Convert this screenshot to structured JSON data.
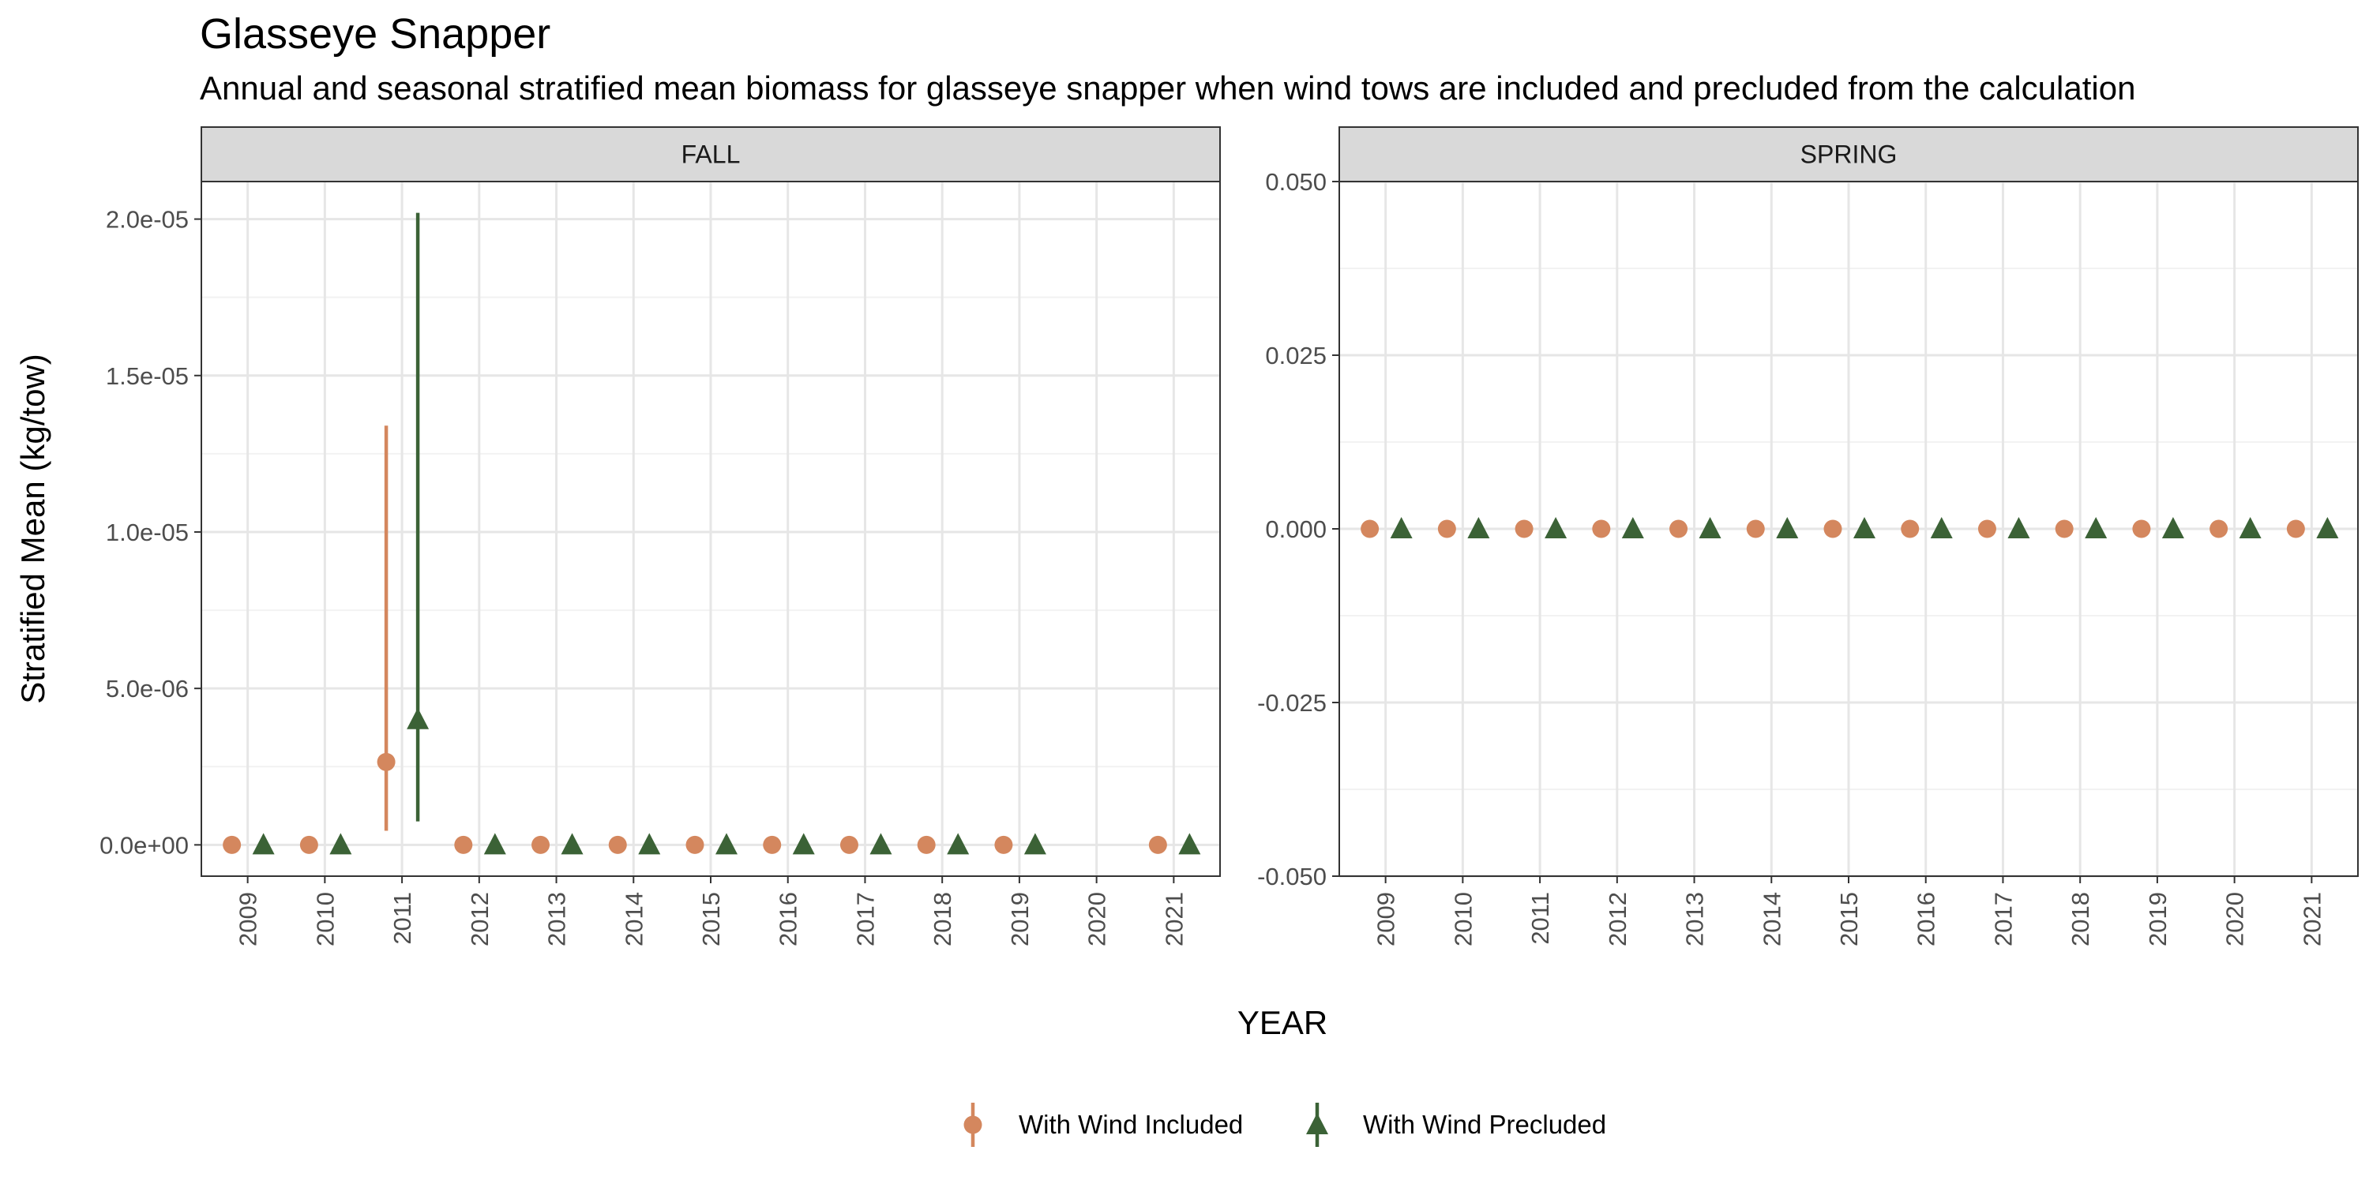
{
  "title": "Glasseye Snapper",
  "subtitle": "Annual and seasonal stratified mean biomass for glasseye snapper when wind tows are included and precluded from the calculation",
  "xlabel": "YEAR",
  "ylabel": "Stratified Mean (kg/tow)",
  "legend": {
    "position": "bottom",
    "items": [
      {
        "label": "With Wind Included",
        "shape": "circle",
        "color": "#D4875E"
      },
      {
        "label": "With Wind Precluded",
        "shape": "triangle",
        "color": "#3B6236"
      }
    ]
  },
  "chart_data": [
    {
      "type": "scatter",
      "panel": "FALL",
      "x_ticks": [
        "2009",
        "2010",
        "2011",
        "2012",
        "2013",
        "2014",
        "2015",
        "2016",
        "2017",
        "2018",
        "2019",
        "2020",
        "2021"
      ],
      "y_ticks": [
        "0.0e+00",
        "5.0e-06",
        "1.0e-05",
        "1.5e-05",
        "2.0e-05"
      ],
      "y_tick_values": [
        0,
        5e-06,
        1e-05,
        1.5e-05,
        2e-05
      ],
      "ylim": [
        -1e-06,
        2.12e-05
      ],
      "grid": true,
      "series": [
        {
          "name": "With Wind Included",
          "color": "#D4875E",
          "shape": "circle",
          "x": [
            "2009",
            "2010",
            "2011",
            "2012",
            "2013",
            "2014",
            "2015",
            "2016",
            "2017",
            "2018",
            "2019",
            "2021"
          ],
          "y": [
            0,
            0,
            2.65e-06,
            0,
            0,
            0,
            0,
            0,
            0,
            0,
            0,
            0
          ],
          "lower": [
            0,
            0,
            4.5e-07,
            0,
            0,
            0,
            0,
            0,
            0,
            0,
            0,
            0
          ],
          "upper": [
            0,
            0,
            1.34e-05,
            0,
            0,
            0,
            0,
            0,
            0,
            0,
            0,
            0
          ]
        },
        {
          "name": "With Wind Precluded",
          "color": "#3B6236",
          "shape": "triangle",
          "x": [
            "2009",
            "2010",
            "2011",
            "2012",
            "2013",
            "2014",
            "2015",
            "2016",
            "2017",
            "2018",
            "2019",
            "2021"
          ],
          "y": [
            0,
            0,
            4e-06,
            0,
            0,
            0,
            0,
            0,
            0,
            0,
            0,
            0
          ],
          "lower": [
            0,
            0,
            7.5e-07,
            0,
            0,
            0,
            0,
            0,
            0,
            0,
            0,
            0
          ],
          "upper": [
            0,
            0,
            2.02e-05,
            0,
            0,
            0,
            0,
            0,
            0,
            0,
            0,
            0
          ]
        }
      ]
    },
    {
      "type": "scatter",
      "panel": "SPRING",
      "x_ticks": [
        "2009",
        "2010",
        "2011",
        "2012",
        "2013",
        "2014",
        "2015",
        "2016",
        "2017",
        "2018",
        "2019",
        "2020",
        "2021"
      ],
      "y_ticks": [
        "-0.050",
        "-0.025",
        "0.000",
        "0.025",
        "0.050"
      ],
      "y_tick_values": [
        -0.05,
        -0.025,
        0,
        0.025,
        0.05
      ],
      "ylim": [
        -0.05,
        0.05
      ],
      "grid": true,
      "series": [
        {
          "name": "With Wind Included",
          "color": "#D4875E",
          "shape": "circle",
          "x": [
            "2009",
            "2010",
            "2011",
            "2012",
            "2013",
            "2014",
            "2015",
            "2016",
            "2017",
            "2018",
            "2019",
            "2020",
            "2021"
          ],
          "y": [
            0,
            0,
            0,
            0,
            0,
            0,
            0,
            0,
            0,
            0,
            0,
            0,
            0
          ]
        },
        {
          "name": "With Wind Precluded",
          "color": "#3B6236",
          "shape": "triangle",
          "x": [
            "2009",
            "2010",
            "2011",
            "2012",
            "2013",
            "2014",
            "2015",
            "2016",
            "2017",
            "2018",
            "2019",
            "2020",
            "2021"
          ],
          "y": [
            0,
            0,
            0,
            0,
            0,
            0,
            0,
            0,
            0,
            0,
            0,
            0,
            0
          ]
        }
      ]
    }
  ]
}
